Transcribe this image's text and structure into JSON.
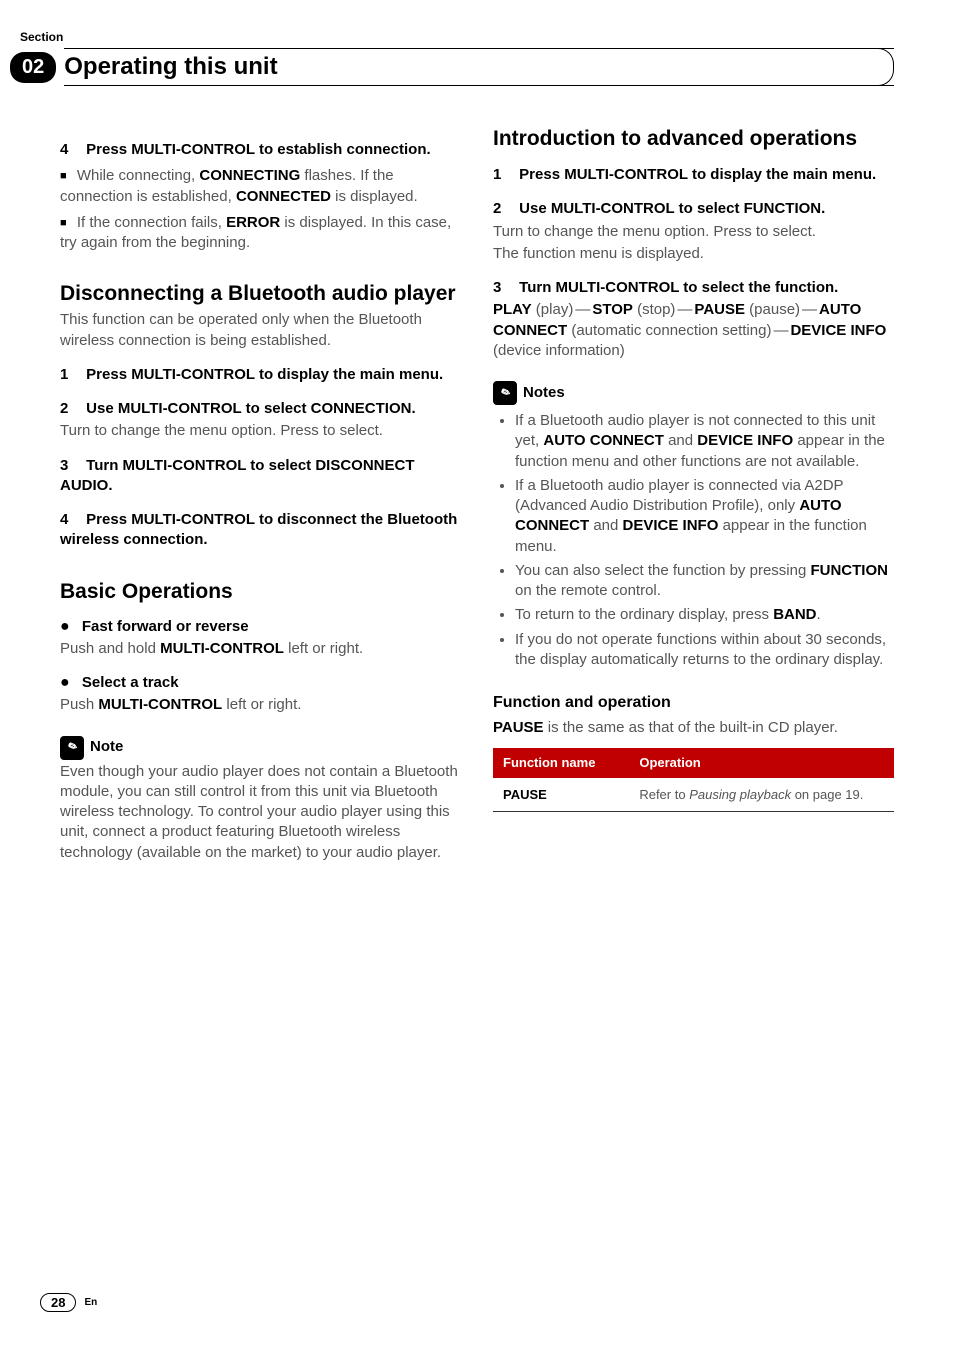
{
  "meta": {
    "section_label": "Section",
    "section_number": "02",
    "header_title": "Operating this unit",
    "page_number": "28",
    "language_code": "En"
  },
  "left": {
    "step4": {
      "num": "4",
      "text": "Press MULTI-CONTROL to establish connection."
    },
    "bullet1_a": "While connecting, ",
    "bullet1_b": "CONNECTING",
    "bullet1_c": " flashes. If the connection is established, ",
    "bullet1_d": "CONNECTED",
    "bullet1_e": " is displayed.",
    "bullet2_a": "If the connection fails, ",
    "bullet2_b": "ERROR",
    "bullet2_c": " is displayed. In this case, try again from the beginning.",
    "disc_title": "Disconnecting a Bluetooth audio player",
    "disc_intro": "This function can be operated only when the Bluetooth wireless connection is being established.",
    "d_step1": {
      "num": "1",
      "text": "Press MULTI-CONTROL to display the main menu."
    },
    "d_step2": {
      "num": "2",
      "text": "Use MULTI-CONTROL to select CONNECTION."
    },
    "d_step2_body": "Turn to change the menu option. Press to select.",
    "d_step3": {
      "num": "3",
      "text": "Turn MULTI-CONTROL to select DISCONNECT AUDIO."
    },
    "d_step4": {
      "num": "4",
      "text": "Press MULTI-CONTROL to disconnect the Bluetooth wireless connection."
    },
    "basic_title": "Basic Operations",
    "op1_title": "Fast forward or reverse",
    "op1_body_a": "Push and hold ",
    "op1_body_b": "MULTI-CONTROL",
    "op1_body_c": " left or right.",
    "op2_title": "Select a track",
    "op2_body_a": "Push ",
    "op2_body_b": "MULTI-CONTROL",
    "op2_body_c": " left or right.",
    "note_label": "Note",
    "note_body": "Even though your audio player does not contain a Bluetooth module, you can still control it from this unit via Bluetooth wireless technology. To control your audio player using this unit, connect a product featuring Bluetooth wireless technology (available on the market) to your audio player."
  },
  "right": {
    "adv_title": "Introduction to advanced operations",
    "a_step1": {
      "num": "1",
      "text": "Press MULTI-CONTROL to display the main menu."
    },
    "a_step2": {
      "num": "2",
      "text": "Use MULTI-CONTROL to select FUNCTION."
    },
    "a_step2_body1": "Turn to change the menu option. Press to select.",
    "a_step2_body2": "The function menu is displayed.",
    "a_step3": {
      "num": "3",
      "text": "Turn MULTI-CONTROL to select the function."
    },
    "seq": {
      "play_b": "PLAY",
      "play_t": " (play)",
      "stop_b": "STOP",
      "stop_t": " (stop)",
      "pause_b": "PAUSE",
      "pause_t": " (pause)",
      "auto_b": "AUTO CONNECT",
      "auto_t": " (automatic connection setting)",
      "dev_b": "DEVICE INFO",
      "dev_t": " (device information)",
      "dash": "—"
    },
    "notes_label": "Notes",
    "notes": {
      "n1_a": "If a Bluetooth audio player is not connected to this unit yet, ",
      "n1_b": "AUTO CONNECT",
      "n1_c": " and ",
      "n1_d": "DEVICE INFO",
      "n1_e": " appear in the function menu and other functions are not available.",
      "n2_a": "If a Bluetooth audio player is connected via A2DP (Advanced Audio Distribution Profile), only ",
      "n2_b": "AUTO CONNECT",
      "n2_c": " and ",
      "n2_d": "DEVICE INFO",
      "n2_e": " appear in the function menu.",
      "n3_a": "You can also select the function by pressing ",
      "n3_b": "FUNCTION",
      "n3_c": " on the remote control.",
      "n4_a": "To return to the ordinary display, press ",
      "n4_b": "BAND",
      "n4_c": ".",
      "n5": "If you do not operate functions within about 30 seconds, the display automatically returns to the ordinary display."
    },
    "func_op_title": "Function and operation",
    "func_op_body_a": "PAUSE",
    "func_op_body_b": " is the same as that of the built-in CD player.",
    "table": {
      "head1": "Function name",
      "head2": "Operation",
      "row_fn": "PAUSE",
      "row_op_a": "Refer to ",
      "row_op_b": "Pausing playback",
      "row_op_c": " on page 19."
    }
  },
  "colors": {
    "table_header_bg": "#c00000",
    "table_header_fg": "#ffffff",
    "body_grey": "#555555"
  }
}
